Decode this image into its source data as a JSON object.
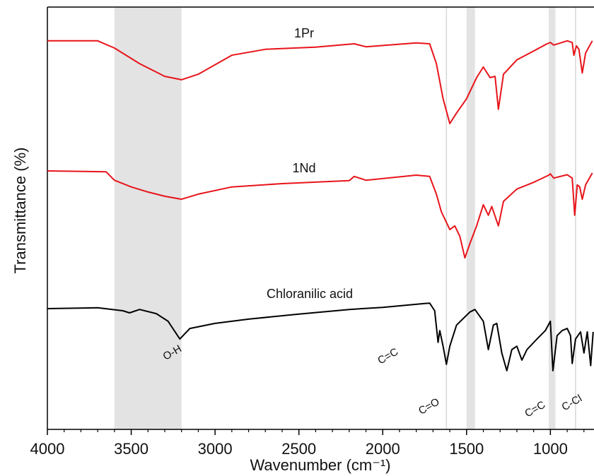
{
  "chart_data": {
    "type": "line",
    "xlabel": "Wavenumber (cm⁻¹)",
    "ylabel": "Transmittance (%)",
    "xlim": [
      4000,
      740
    ],
    "ylim": [
      0,
      100
    ],
    "xticks": [
      4000,
      3500,
      3000,
      2500,
      2000,
      1500,
      1000
    ],
    "bands": [
      [
        3600,
        3200
      ],
      [
        1500,
        1450
      ],
      [
        1010,
        970
      ]
    ],
    "vlines": [
      1620,
      850
    ],
    "annotations": [
      "O-H",
      "C=O",
      "C=C",
      "C=C",
      "C-Cl"
    ],
    "series": [
      {
        "name": "1Pr",
        "color": "#e8141a",
        "x": [
          4000,
          3700,
          3600,
          3450,
          3300,
          3200,
          3100,
          2900,
          2700,
          2400,
          2170,
          2100,
          1800,
          1720,
          1680,
          1640,
          1600,
          1560,
          1500,
          1440,
          1400,
          1360,
          1330,
          1310,
          1280,
          1200,
          1100,
          1020,
          1000,
          980,
          900,
          870,
          860,
          845,
          830,
          810,
          790,
          750
        ],
        "values": [
          92.0,
          92.0,
          90.3,
          86.6,
          83.6,
          82.8,
          84.1,
          88.6,
          90.0,
          90.5,
          91.3,
          90.6,
          91.5,
          91.3,
          86.6,
          78.3,
          72.4,
          74.9,
          78.3,
          83.3,
          85.8,
          83.3,
          83.6,
          75.8,
          84.1,
          87.5,
          89.6,
          91.3,
          91.6,
          91.0,
          92.0,
          91.6,
          88.6,
          90.8,
          90.0,
          84.4,
          89.1,
          92.0
        ]
      },
      {
        "name": "1Nd",
        "color": "#e8141a",
        "x": [
          4000,
          3650,
          3600,
          3500,
          3400,
          3300,
          3200,
          3100,
          2900,
          2600,
          2200,
          2170,
          2100,
          1800,
          1720,
          1680,
          1650,
          1600,
          1570,
          1540,
          1510,
          1480,
          1440,
          1400,
          1370,
          1350,
          1310,
          1280,
          1200,
          1100,
          1010,
          1000,
          980,
          900,
          870,
          855,
          840,
          825,
          810,
          790,
          750
        ],
        "values": [
          61.2,
          61.0,
          59.0,
          57.4,
          56.2,
          55.2,
          54.5,
          55.7,
          57.4,
          58.2,
          58.9,
          59.9,
          59.0,
          60.2,
          59.9,
          55.7,
          51.5,
          47.3,
          48.2,
          45.7,
          40.6,
          44.0,
          48.2,
          53.2,
          50.7,
          52.8,
          48.2,
          54.0,
          56.9,
          58.5,
          60.2,
          60.5,
          59.5,
          60.3,
          59.5,
          50.7,
          57.9,
          57.4,
          54.5,
          57.9,
          60.7
        ]
      },
      {
        "name": "Chloranilic acid",
        "color": "#000000",
        "x": [
          4000,
          3700,
          3550,
          3510,
          3450,
          3350,
          3280,
          3210,
          3150,
          3000,
          2800,
          2500,
          2200,
          2000,
          1750,
          1720,
          1690,
          1670,
          1660,
          1640,
          1620,
          1600,
          1560,
          1480,
          1450,
          1400,
          1370,
          1340,
          1320,
          1290,
          1260,
          1230,
          1200,
          1170,
          1140,
          1080,
          1030,
          1000,
          985,
          960,
          930,
          900,
          880,
          870,
          850,
          820,
          800,
          780,
          760,
          745
        ],
        "values": [
          28.6,
          28.8,
          28.1,
          27.6,
          28.4,
          27.4,
          25.6,
          21.4,
          23.9,
          25.1,
          26.1,
          27.3,
          28.4,
          28.9,
          29.8,
          29.9,
          28.1,
          20.6,
          23.4,
          19.7,
          15.4,
          19.7,
          24.7,
          27.8,
          28.4,
          25.6,
          18.9,
          24.7,
          25.1,
          18.1,
          13.9,
          18.9,
          19.7,
          16.4,
          18.9,
          21.4,
          23.4,
          25.6,
          13.9,
          22.2,
          23.4,
          23.9,
          22.2,
          15.6,
          21.4,
          23.1,
          18.1,
          23.1,
          15.1,
          23.1
        ]
      }
    ]
  }
}
